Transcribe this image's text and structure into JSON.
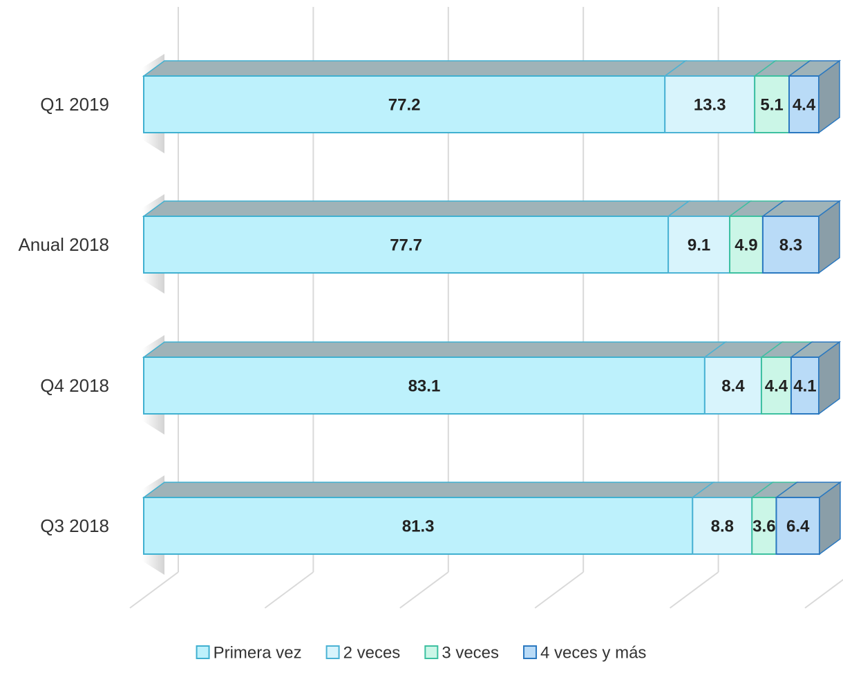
{
  "chart_data": {
    "type": "stacked-bar-3d",
    "categories": [
      "Q1 2019",
      "Anual 2018",
      "Q4 2018",
      "Q3 2018"
    ],
    "series": [
      {
        "name": "Primera vez",
        "color": "#bdf1fc",
        "values": [
          77.2,
          77.7,
          83.1,
          81.3
        ]
      },
      {
        "name": "2 veces",
        "color": "#d8f4fc",
        "values": [
          13.3,
          9.1,
          8.4,
          8.8
        ]
      },
      {
        "name": "3 veces",
        "color": "#cbf6e7",
        "values": [
          5.1,
          4.9,
          4.4,
          3.6
        ]
      },
      {
        "name": "4 veces y más",
        "color": "#b9dbf7",
        "values": [
          4.4,
          8.3,
          4.1,
          6.4
        ]
      }
    ],
    "xlim": [
      0,
      100
    ],
    "xticks": [
      0,
      20,
      40,
      60,
      80,
      100
    ],
    "grid": true,
    "legend": "bottom"
  }
}
